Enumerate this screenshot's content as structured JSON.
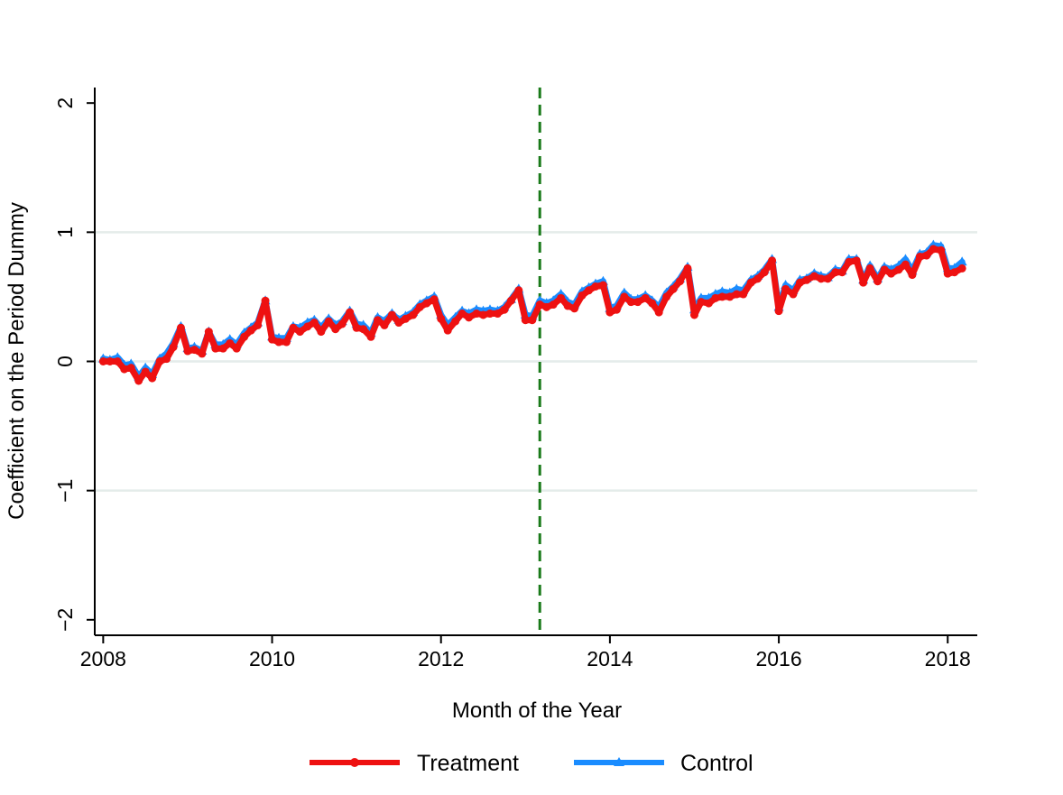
{
  "chart_data": {
    "type": "line",
    "xlabel": "Month of the Year",
    "ylabel": "Coefficient on the Period Dummy",
    "xlim": [
      2007.9,
      2018.35
    ],
    "ylim": [
      -2.12,
      2.12
    ],
    "x_ticks": [
      {
        "value": 2008,
        "label": "2008"
      },
      {
        "value": 2010,
        "label": "2010"
      },
      {
        "value": 2012,
        "label": "2012"
      },
      {
        "value": 2014,
        "label": "2014"
      },
      {
        "value": 2016,
        "label": "2016"
      },
      {
        "value": 2018,
        "label": "2018"
      }
    ],
    "y_ticks": [
      {
        "value": -2,
        "label": "−2"
      },
      {
        "value": -1,
        "label": "−1"
      },
      {
        "value": 0,
        "label": "0"
      },
      {
        "value": 1,
        "label": "1"
      },
      {
        "value": 2,
        "label": "2"
      }
    ],
    "gridlines": [
      -1,
      0,
      1
    ],
    "grid": "horizontal",
    "vline": {
      "x": 2013.17,
      "color": "#1a7a1a",
      "style": "dashed"
    },
    "legend": {
      "position": "bottom"
    },
    "series": [
      {
        "name": "Control",
        "color": "#1a8cff",
        "marker": "triangle",
        "values": [
          [
            2008.0,
            0.02
          ],
          [
            2008.08,
            0.01
          ],
          [
            2008.17,
            0.03
          ],
          [
            2008.25,
            -0.03
          ],
          [
            2008.33,
            -0.02
          ],
          [
            2008.42,
            -0.12
          ],
          [
            2008.5,
            -0.05
          ],
          [
            2008.58,
            -0.1
          ],
          [
            2008.67,
            0.02
          ],
          [
            2008.75,
            0.06
          ],
          [
            2008.83,
            0.14
          ],
          [
            2008.92,
            0.27
          ],
          [
            2009.0,
            0.1
          ],
          [
            2009.08,
            0.11
          ],
          [
            2009.17,
            0.08
          ],
          [
            2009.25,
            0.23
          ],
          [
            2009.33,
            0.13
          ],
          [
            2009.42,
            0.13
          ],
          [
            2009.5,
            0.17
          ],
          [
            2009.58,
            0.13
          ],
          [
            2009.67,
            0.22
          ],
          [
            2009.75,
            0.26
          ],
          [
            2009.83,
            0.3
          ],
          [
            2009.92,
            0.47
          ],
          [
            2010.0,
            0.19
          ],
          [
            2010.08,
            0.18
          ],
          [
            2010.17,
            0.18
          ],
          [
            2010.25,
            0.27
          ],
          [
            2010.33,
            0.26
          ],
          [
            2010.42,
            0.3
          ],
          [
            2010.5,
            0.32
          ],
          [
            2010.58,
            0.26
          ],
          [
            2010.67,
            0.33
          ],
          [
            2010.75,
            0.28
          ],
          [
            2010.83,
            0.31
          ],
          [
            2010.92,
            0.39
          ],
          [
            2011.0,
            0.29
          ],
          [
            2011.08,
            0.28
          ],
          [
            2011.17,
            0.22
          ],
          [
            2011.25,
            0.34
          ],
          [
            2011.33,
            0.31
          ],
          [
            2011.42,
            0.37
          ],
          [
            2011.5,
            0.32
          ],
          [
            2011.58,
            0.35
          ],
          [
            2011.67,
            0.38
          ],
          [
            2011.75,
            0.44
          ],
          [
            2011.83,
            0.47
          ],
          [
            2011.92,
            0.5
          ],
          [
            2012.0,
            0.36
          ],
          [
            2012.08,
            0.28
          ],
          [
            2012.17,
            0.34
          ],
          [
            2012.25,
            0.39
          ],
          [
            2012.33,
            0.37
          ],
          [
            2012.42,
            0.4
          ],
          [
            2012.5,
            0.39
          ],
          [
            2012.58,
            0.4
          ],
          [
            2012.67,
            0.39
          ],
          [
            2012.75,
            0.42
          ],
          [
            2012.83,
            0.48
          ],
          [
            2012.92,
            0.56
          ],
          [
            2013.0,
            0.36
          ],
          [
            2013.08,
            0.35
          ],
          [
            2013.17,
            0.47
          ],
          [
            2013.25,
            0.45
          ],
          [
            2013.33,
            0.47
          ],
          [
            2013.42,
            0.52
          ],
          [
            2013.5,
            0.46
          ],
          [
            2013.58,
            0.44
          ],
          [
            2013.67,
            0.54
          ],
          [
            2013.75,
            0.57
          ],
          [
            2013.83,
            0.6
          ],
          [
            2013.92,
            0.62
          ],
          [
            2014.0,
            0.41
          ],
          [
            2014.08,
            0.43
          ],
          [
            2014.17,
            0.53
          ],
          [
            2014.25,
            0.48
          ],
          [
            2014.33,
            0.48
          ],
          [
            2014.42,
            0.51
          ],
          [
            2014.5,
            0.47
          ],
          [
            2014.58,
            0.42
          ],
          [
            2014.67,
            0.53
          ],
          [
            2014.75,
            0.58
          ],
          [
            2014.83,
            0.64
          ],
          [
            2014.92,
            0.73
          ],
          [
            2015.0,
            0.4
          ],
          [
            2015.08,
            0.49
          ],
          [
            2015.17,
            0.49
          ],
          [
            2015.25,
            0.52
          ],
          [
            2015.33,
            0.54
          ],
          [
            2015.42,
            0.53
          ],
          [
            2015.5,
            0.56
          ],
          [
            2015.58,
            0.55
          ],
          [
            2015.67,
            0.63
          ],
          [
            2015.75,
            0.66
          ],
          [
            2015.83,
            0.71
          ],
          [
            2015.92,
            0.79
          ],
          [
            2016.0,
            0.42
          ],
          [
            2016.08,
            0.59
          ],
          [
            2016.17,
            0.55
          ],
          [
            2016.25,
            0.63
          ],
          [
            2016.33,
            0.64
          ],
          [
            2016.42,
            0.68
          ],
          [
            2016.5,
            0.66
          ],
          [
            2016.58,
            0.65
          ],
          [
            2016.67,
            0.71
          ],
          [
            2016.75,
            0.7
          ],
          [
            2016.83,
            0.79
          ],
          [
            2016.92,
            0.79
          ],
          [
            2017.0,
            0.63
          ],
          [
            2017.08,
            0.74
          ],
          [
            2017.17,
            0.64
          ],
          [
            2017.25,
            0.73
          ],
          [
            2017.33,
            0.71
          ],
          [
            2017.42,
            0.74
          ],
          [
            2017.5,
            0.79
          ],
          [
            2017.58,
            0.7
          ],
          [
            2017.67,
            0.83
          ],
          [
            2017.75,
            0.84
          ],
          [
            2017.83,
            0.9
          ],
          [
            2017.92,
            0.89
          ],
          [
            2018.0,
            0.72
          ],
          [
            2018.08,
            0.72
          ],
          [
            2018.17,
            0.77
          ]
        ]
      },
      {
        "name": "Treatment",
        "color": "#ee1111",
        "marker": "circle",
        "values": [
          [
            2008.0,
            0.0
          ],
          [
            2008.08,
            0.0
          ],
          [
            2008.17,
            0.0
          ],
          [
            2008.25,
            -0.06
          ],
          [
            2008.33,
            -0.05
          ],
          [
            2008.42,
            -0.15
          ],
          [
            2008.5,
            -0.08
          ],
          [
            2008.58,
            -0.13
          ],
          [
            2008.67,
            0.0
          ],
          [
            2008.75,
            0.02
          ],
          [
            2008.83,
            0.11
          ],
          [
            2008.92,
            0.26
          ],
          [
            2009.0,
            0.08
          ],
          [
            2009.08,
            0.09
          ],
          [
            2009.17,
            0.06
          ],
          [
            2009.25,
            0.23
          ],
          [
            2009.33,
            0.1
          ],
          [
            2009.42,
            0.1
          ],
          [
            2009.5,
            0.14
          ],
          [
            2009.58,
            0.1
          ],
          [
            2009.67,
            0.19
          ],
          [
            2009.75,
            0.24
          ],
          [
            2009.83,
            0.28
          ],
          [
            2009.92,
            0.47
          ],
          [
            2010.0,
            0.17
          ],
          [
            2010.08,
            0.15
          ],
          [
            2010.17,
            0.15
          ],
          [
            2010.25,
            0.26
          ],
          [
            2010.33,
            0.23
          ],
          [
            2010.42,
            0.27
          ],
          [
            2010.5,
            0.3
          ],
          [
            2010.58,
            0.23
          ],
          [
            2010.67,
            0.31
          ],
          [
            2010.75,
            0.25
          ],
          [
            2010.83,
            0.29
          ],
          [
            2010.92,
            0.38
          ],
          [
            2011.0,
            0.26
          ],
          [
            2011.08,
            0.25
          ],
          [
            2011.17,
            0.19
          ],
          [
            2011.25,
            0.32
          ],
          [
            2011.33,
            0.28
          ],
          [
            2011.42,
            0.36
          ],
          [
            2011.5,
            0.3
          ],
          [
            2011.58,
            0.33
          ],
          [
            2011.67,
            0.36
          ],
          [
            2011.75,
            0.42
          ],
          [
            2011.83,
            0.45
          ],
          [
            2011.92,
            0.48
          ],
          [
            2012.0,
            0.33
          ],
          [
            2012.08,
            0.24
          ],
          [
            2012.17,
            0.31
          ],
          [
            2012.25,
            0.37
          ],
          [
            2012.33,
            0.34
          ],
          [
            2012.42,
            0.37
          ],
          [
            2012.5,
            0.36
          ],
          [
            2012.58,
            0.37
          ],
          [
            2012.67,
            0.37
          ],
          [
            2012.75,
            0.4
          ],
          [
            2012.83,
            0.47
          ],
          [
            2012.92,
            0.55
          ],
          [
            2013.0,
            0.32
          ],
          [
            2013.08,
            0.32
          ],
          [
            2013.17,
            0.44
          ],
          [
            2013.25,
            0.42
          ],
          [
            2013.33,
            0.44
          ],
          [
            2013.42,
            0.49
          ],
          [
            2013.5,
            0.43
          ],
          [
            2013.58,
            0.41
          ],
          [
            2013.67,
            0.51
          ],
          [
            2013.75,
            0.55
          ],
          [
            2013.83,
            0.58
          ],
          [
            2013.92,
            0.59
          ],
          [
            2014.0,
            0.38
          ],
          [
            2014.08,
            0.4
          ],
          [
            2014.17,
            0.5
          ],
          [
            2014.25,
            0.46
          ],
          [
            2014.33,
            0.46
          ],
          [
            2014.42,
            0.49
          ],
          [
            2014.5,
            0.45
          ],
          [
            2014.58,
            0.38
          ],
          [
            2014.67,
            0.5
          ],
          [
            2014.75,
            0.56
          ],
          [
            2014.83,
            0.62
          ],
          [
            2014.92,
            0.72
          ],
          [
            2015.0,
            0.36
          ],
          [
            2015.08,
            0.46
          ],
          [
            2015.17,
            0.45
          ],
          [
            2015.25,
            0.49
          ],
          [
            2015.33,
            0.5
          ],
          [
            2015.42,
            0.5
          ],
          [
            2015.5,
            0.52
          ],
          [
            2015.58,
            0.52
          ],
          [
            2015.67,
            0.61
          ],
          [
            2015.75,
            0.64
          ],
          [
            2015.83,
            0.69
          ],
          [
            2015.92,
            0.78
          ],
          [
            2016.0,
            0.39
          ],
          [
            2016.08,
            0.56
          ],
          [
            2016.17,
            0.52
          ],
          [
            2016.25,
            0.61
          ],
          [
            2016.33,
            0.63
          ],
          [
            2016.42,
            0.66
          ],
          [
            2016.5,
            0.64
          ],
          [
            2016.58,
            0.64
          ],
          [
            2016.67,
            0.69
          ],
          [
            2016.75,
            0.69
          ],
          [
            2016.83,
            0.77
          ],
          [
            2016.92,
            0.78
          ],
          [
            2017.0,
            0.61
          ],
          [
            2017.08,
            0.72
          ],
          [
            2017.17,
            0.62
          ],
          [
            2017.25,
            0.71
          ],
          [
            2017.33,
            0.68
          ],
          [
            2017.42,
            0.71
          ],
          [
            2017.5,
            0.75
          ],
          [
            2017.58,
            0.67
          ],
          [
            2017.67,
            0.81
          ],
          [
            2017.75,
            0.82
          ],
          [
            2017.83,
            0.87
          ],
          [
            2017.92,
            0.86
          ],
          [
            2018.0,
            0.68
          ],
          [
            2018.08,
            0.69
          ],
          [
            2018.17,
            0.72
          ]
        ]
      }
    ]
  }
}
